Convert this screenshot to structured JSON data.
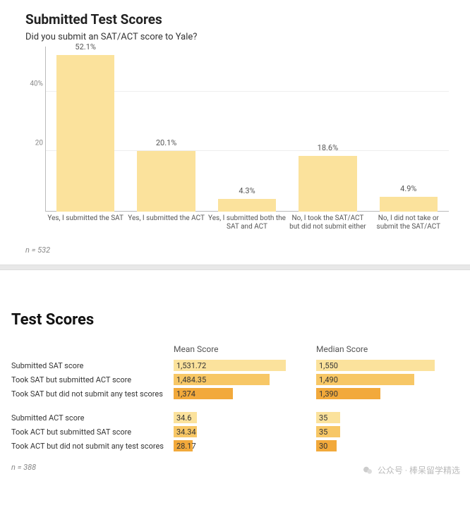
{
  "section1": {
    "title": "Submitted Test Scores",
    "subtitle": "Did you submit an SAT/ACT score to Yale?",
    "footnote": "n = 532",
    "chart": {
      "type": "bar",
      "ymax": 55,
      "yticks": [
        {
          "value": 20,
          "label": "20"
        },
        {
          "value": 40,
          "label": "40%"
        }
      ],
      "bar_color": "#fbe29c",
      "label_fontsize": 11,
      "categories": [
        {
          "label": "Yes, I submitted the SAT",
          "value": 52.1,
          "display": "52.1%"
        },
        {
          "label": "Yes, I submitted the ACT",
          "value": 20.1,
          "display": "20.1%"
        },
        {
          "label": "Yes, I submitted both the SAT and ACT",
          "value": 4.3,
          "display": "4.3%"
        },
        {
          "label": "No, I took the SAT/ACT but did not submit either",
          "value": 18.6,
          "display": "18.6%"
        },
        {
          "label": "No, I did not take or submit the SAT/ACT",
          "value": 4.9,
          "display": "4.9%"
        }
      ],
      "grid_color": "#eeeeee",
      "axis_color": "#bbbbbb",
      "background_color": "#ffffff"
    }
  },
  "section2": {
    "title": "Test Scores",
    "headers": {
      "mean": "Mean Score",
      "median": "Median Score"
    },
    "footnote": "n = 388",
    "colors": {
      "light": "#fbe29c",
      "mid": "#f7c766",
      "dark": "#f2a93b"
    },
    "sat_max": 1600,
    "act_max": 36,
    "groups": [
      {
        "type": "sat",
        "rows": [
          {
            "label": "Submitted SAT score",
            "mean": 1531.72,
            "mean_display": "1,531.72",
            "median": 1550,
            "median_display": "1,550",
            "shade": "light"
          },
          {
            "label": "Took SAT but submitted ACT score",
            "mean": 1484.35,
            "mean_display": "1,484.35",
            "median": 1490,
            "median_display": "1,490",
            "shade": "mid"
          },
          {
            "label": "Took SAT but did not submit any test scores",
            "mean": 1374,
            "mean_display": "1,374",
            "median": 1390,
            "median_display": "1,390",
            "shade": "dark"
          }
        ]
      },
      {
        "type": "act",
        "rows": [
          {
            "label": "Submitted ACT score",
            "mean": 34.6,
            "mean_display": "34.6",
            "median": 35,
            "median_display": "35",
            "shade": "light"
          },
          {
            "label": "Took ACT but submitted SAT score",
            "mean": 34.34,
            "mean_display": "34.34",
            "median": 35,
            "median_display": "35",
            "shade": "mid"
          },
          {
            "label": "Took ACT but did not submit any test scores",
            "mean": 28.17,
            "mean_display": "28.17",
            "median": 30,
            "median_display": "30",
            "shade": "dark"
          }
        ]
      }
    ],
    "watermark": {
      "icon": "wechat-icon",
      "text": "公众号 · 棒呆留学精选"
    }
  }
}
